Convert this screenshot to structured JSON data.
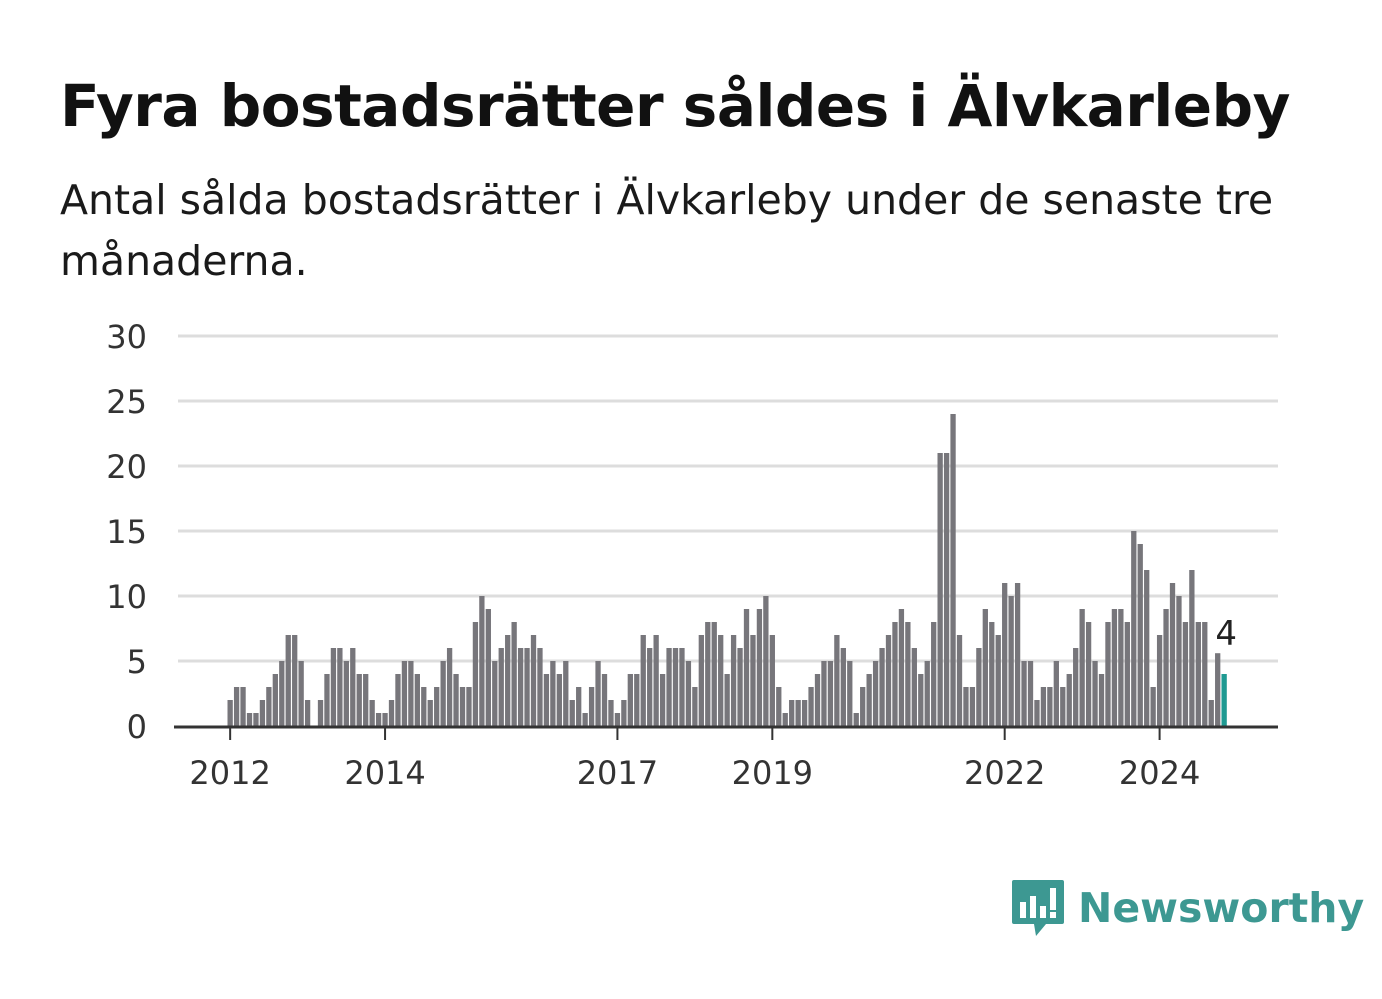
{
  "title": "Fyra bostadsrätter såldes i Älvkarleby",
  "subtitle": "Antal sålda bostadsrätter i Älvkarleby under de senaste tre månaderna.",
  "brand": {
    "name": "Newsworthy",
    "color": "#3d9892",
    "icon": "bar-chart-speech-bubble-icon"
  },
  "colors": {
    "bars": "#77767b",
    "highlight": "#1f9a92",
    "grid": "#dddddd",
    "axis": "#333333"
  },
  "chart_data": {
    "type": "bar",
    "x_start": "2012-01",
    "x_interval": "month",
    "ylim": [
      0,
      30
    ],
    "yticks": [
      0,
      5,
      10,
      15,
      20,
      25,
      30
    ],
    "xticks": [
      {
        "label": "2012",
        "date": "2012-01"
      },
      {
        "label": "2014",
        "date": "2014-01"
      },
      {
        "label": "2017",
        "date": "2017-01"
      },
      {
        "label": "2019",
        "date": "2019-01"
      },
      {
        "label": "2022",
        "date": "2022-01"
      },
      {
        "label": "2024",
        "date": "2024-01"
      }
    ],
    "grid": true,
    "values": [
      2,
      3,
      3,
      1,
      1,
      2,
      3,
      4,
      5,
      7,
      7,
      5,
      2,
      0,
      2,
      4,
      6,
      6,
      5,
      6,
      4,
      4,
      2,
      1,
      1,
      2,
      4,
      5,
      5,
      4,
      3,
      2,
      3,
      5,
      6,
      4,
      3,
      3,
      8,
      10,
      9,
      5,
      6,
      7,
      8,
      6,
      6,
      7,
      6,
      4,
      5,
      4,
      5,
      2,
      3,
      1,
      3,
      5,
      4,
      2,
      1,
      2,
      4,
      4,
      7,
      6,
      7,
      4,
      6,
      6,
      6,
      5,
      3,
      7,
      8,
      8,
      7,
      4,
      7,
      6,
      9,
      7,
      9,
      10,
      7,
      3,
      1,
      2,
      2,
      2,
      3,
      4,
      5,
      5,
      7,
      6,
      5,
      1,
      3,
      4,
      5,
      6,
      7,
      8,
      9,
      8,
      6,
      4,
      5,
      8,
      21,
      21,
      24,
      7,
      3,
      3,
      6,
      9,
      8,
      7,
      11,
      10,
      11,
      5,
      5,
      2,
      3,
      3,
      5,
      3,
      4,
      6,
      9,
      8,
      5,
      4,
      8,
      9,
      9,
      8,
      15,
      14,
      12,
      3,
      7,
      9,
      11,
      10,
      8,
      12,
      8,
      8,
      2,
      5.6,
      4
    ],
    "highlight_index": 154,
    "highlight_label": "4"
  }
}
